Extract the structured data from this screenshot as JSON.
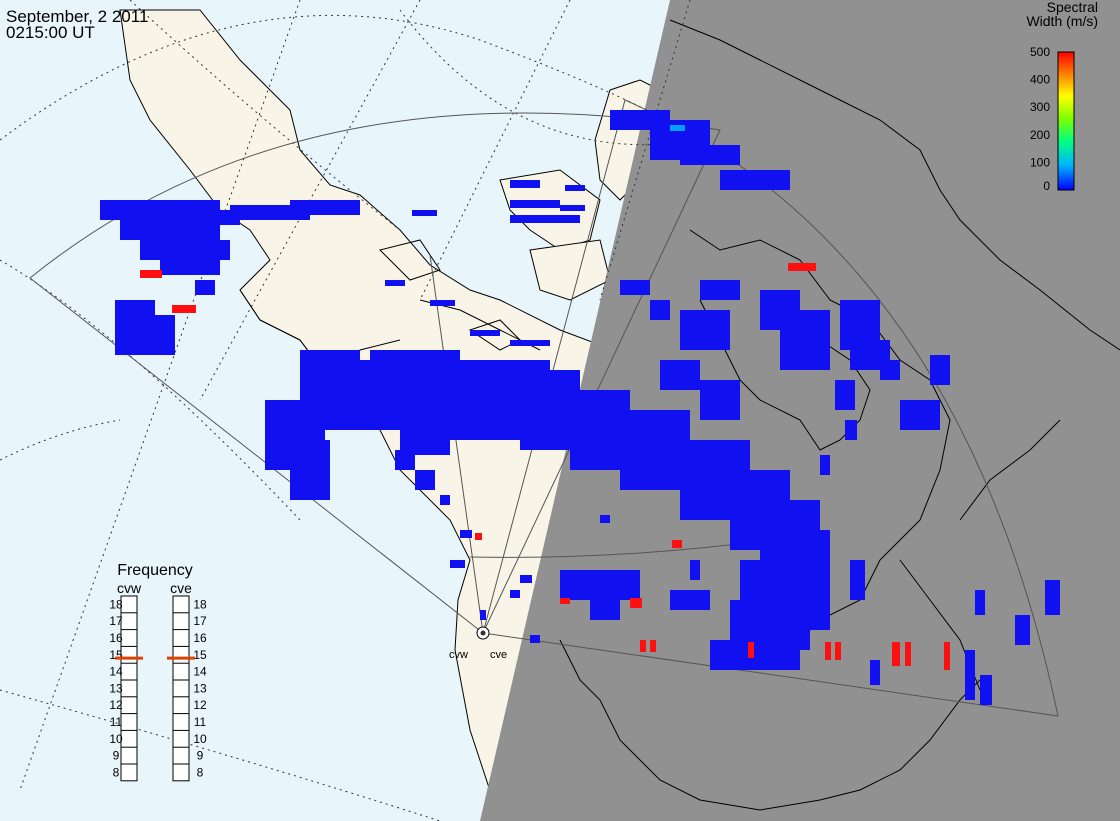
{
  "header": {
    "date": "September, 2 2011",
    "time": "0215:00 UT"
  },
  "colorbar": {
    "title_line1": "Spectral",
    "title_line2": "Width (m/s)",
    "ticks": [
      "500",
      "400",
      "300",
      "200",
      "100",
      "0"
    ],
    "colors": [
      "#0000ff",
      "#00b4ff",
      "#00ff80",
      "#80ff00",
      "#ffff00",
      "#ff8000",
      "#ff0000"
    ]
  },
  "frequency": {
    "title": "Frequency",
    "radars": [
      {
        "name": "cvw",
        "scale": [
          "18",
          "17",
          "16",
          "15",
          "14",
          "13",
          "12",
          "11",
          "10",
          "9",
          "8"
        ],
        "value": 14.8
      },
      {
        "name": "cve",
        "scale": [
          "18",
          "17",
          "16",
          "15",
          "14",
          "13",
          "12",
          "11",
          "10",
          "9",
          "8"
        ],
        "value": 14.8
      }
    ]
  },
  "site": {
    "labels": [
      "cvw",
      "cve"
    ]
  },
  "colors": {
    "ocean": "#e8f6fc",
    "land_day": "#f8f5e8",
    "night": "#919191",
    "echo_low": "#1010f0",
    "echo_high": "#ff1010",
    "marker": "#e04000"
  }
}
